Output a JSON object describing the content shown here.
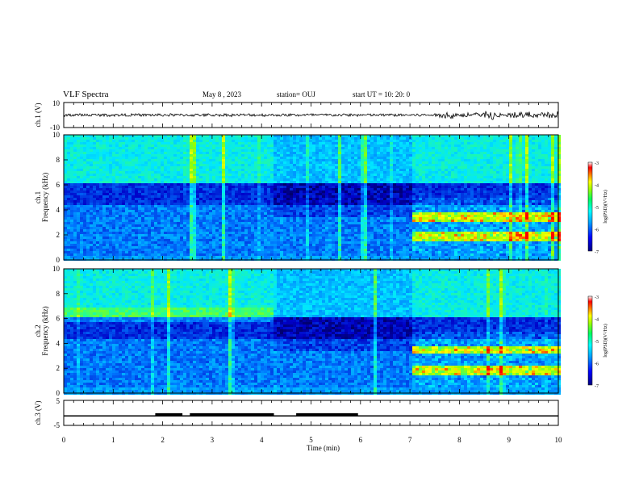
{
  "header": {
    "title": "VLF Spectra",
    "date": "May 8  , 2023",
    "station": "station= OUJ",
    "start": "start  UT =   10: 20: 0"
  },
  "colorbar": {
    "label": "log(PSD)(V²/Hz)",
    "ticks": [
      "-3",
      "-4",
      "-5",
      "-6",
      "-7"
    ],
    "colors": [
      "#000088",
      "#0000ff",
      "#00a0ff",
      "#00ffff",
      "#40ff80",
      "#00ff00",
      "#ffff00",
      "#ff8000",
      "#ff0000",
      "#ffffff"
    ]
  },
  "chart_data": [
    {
      "type": "line",
      "name": "ch.1 waveform",
      "ylabel": "ch.1 (V)",
      "ylim": [
        -10,
        10
      ],
      "yticks": [
        "10",
        "-10"
      ],
      "xlim": [
        0,
        10
      ],
      "description_level": "amplitude ~1 V until 7 min, bursts up to ~4 V between 7.8 and 9.8 min"
    },
    {
      "type": "heatmap",
      "name": "ch.1 spectrogram",
      "ylabel": "ch.1\nFrequency  (kHz)",
      "ylim": [
        0,
        10
      ],
      "yticks": [
        "0",
        "2",
        "4",
        "6",
        "8",
        "10"
      ],
      "xlim": [
        0,
        10
      ],
      "zlim": [
        -7,
        -3
      ]
    },
    {
      "type": "heatmap",
      "name": "ch.2 spectrogram",
      "ylabel": "ch.2\nFrequency  (kHz)",
      "ylim": [
        0,
        10
      ],
      "yticks": [
        "0",
        "2",
        "4",
        "6",
        "8",
        "10"
      ],
      "xlim": [
        0,
        10
      ],
      "zlim": [
        -7,
        -3
      ]
    },
    {
      "type": "line",
      "name": "ch.3 level",
      "ylabel": "ch.3 (V)",
      "ylim": [
        -5,
        5
      ],
      "yticks": [
        "5",
        "-5"
      ],
      "xlim": [
        0,
        10
      ],
      "baseline": -1.2,
      "segments": [
        [
          1.85,
          2.4,
          -0.6
        ],
        [
          2.55,
          4.25,
          -0.6
        ],
        [
          4.7,
          5.95,
          -0.6
        ]
      ]
    }
  ],
  "xaxis": {
    "label": "Time  (min)",
    "ticks": [
      "0",
      "1",
      "2",
      "3",
      "4",
      "5",
      "6",
      "7",
      "8",
      "9",
      "10"
    ]
  }
}
